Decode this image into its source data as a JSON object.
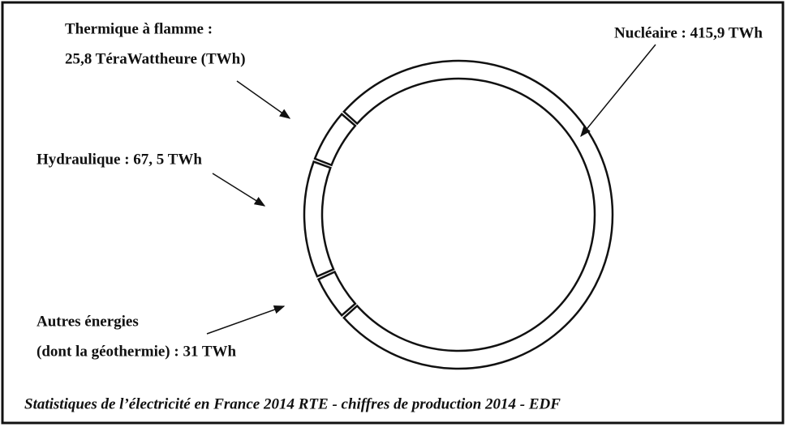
{
  "chart_data": {
    "type": "donut",
    "caption": "Statistiques de l’électricité en France 2014 RTE - chiffres de production 2014 - EDF",
    "values": [
      415.9,
      25.8,
      67.5,
      31
    ],
    "labels": [
      [
        "Nucléaire : 415,9 TWh"
      ],
      [
        "Thermique à flamme :",
        "25,8 TéraWattheure (TWh)"
      ],
      [
        "Hydraulique : 67, 5 TWh"
      ],
      [
        "Autres énergies",
        "(dont la géothermie) : 31 TWh"
      ]
    ],
    "color": "#ffffff"
  }
}
